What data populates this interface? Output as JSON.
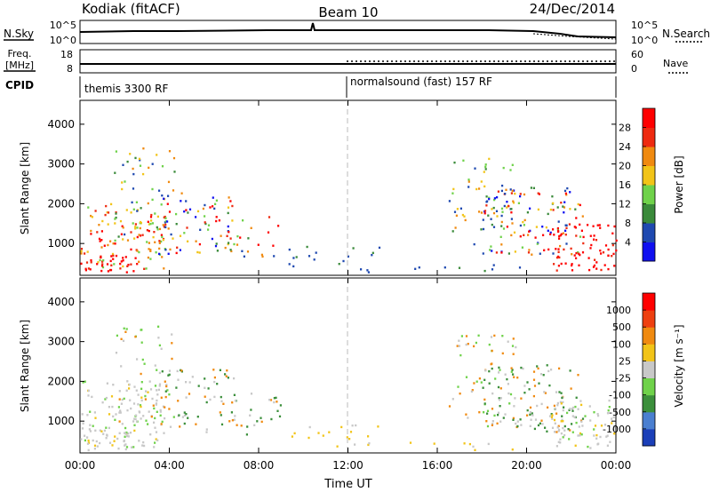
{
  "header": {
    "station": "Kodiak (fitACF)",
    "beam": "Beam 10",
    "date": "24/Dec/2014"
  },
  "top_panels": {
    "nsky_label": "N.Sky",
    "nsky_ticks": [
      "10^5",
      "10^0"
    ],
    "nsearch_label": "N.Search",
    "nsearch_ticks": [
      "10^5",
      "10^0"
    ],
    "freq_label_1": "Freq.",
    "freq_label_2": "[MHz]",
    "freq_ticks": [
      "18",
      "8"
    ],
    "nave_label": "Nave",
    "nave_ticks": [
      "60",
      "0"
    ],
    "cpid_label": "CPID",
    "cpid_segments": [
      "themis 3300 RF",
      "normalsound (fast) 157 RF"
    ]
  },
  "chart_data": [
    {
      "type": "heatmap",
      "name": "power",
      "ylabel": "Slant Range [km]",
      "yticks": [
        "1000",
        "2000",
        "3000",
        "4000"
      ],
      "ylim": [
        200,
        4600
      ],
      "xlim_hours": [
        0,
        24
      ],
      "colorbar_label": "Power [dB]",
      "colorbar_ticks": [
        "4",
        "8",
        "12",
        "16",
        "20",
        "24",
        "28"
      ],
      "colorbar_colors": [
        "#1010f0",
        "#1f49b0",
        "#3a8a3a",
        "#6fd24a",
        "#f2c418",
        "#f08a10",
        "#ee2a10",
        "#ff0000"
      ],
      "marker_hour": 12
    },
    {
      "type": "heatmap",
      "name": "velocity",
      "ylabel": "Slant Range [km]",
      "yticks": [
        "1000",
        "2000",
        "3000",
        "4000"
      ],
      "ylim": [
        200,
        4600
      ],
      "xlim_hours": [
        0,
        24
      ],
      "colorbar_label": "Velocity [m s⁻¹]",
      "colorbar_ticks": [
        "1000",
        "500",
        "100",
        "25",
        "-25",
        "-100",
        "-500",
        "-1000"
      ],
      "colorbar_colors": [
        "#1b3fb8",
        "#4a7fd0",
        "#3b8f3b",
        "#6fd24a",
        "#c8c8c8",
        "#f2c418",
        "#f08a10",
        "#ee4010",
        "#ff0000"
      ],
      "marker_hour": 12
    }
  ],
  "xaxis": {
    "ticks": [
      "00:00",
      "04:00",
      "08:00",
      "12:00",
      "16:00",
      "20:00",
      "00:00"
    ],
    "label": "Time UT"
  }
}
